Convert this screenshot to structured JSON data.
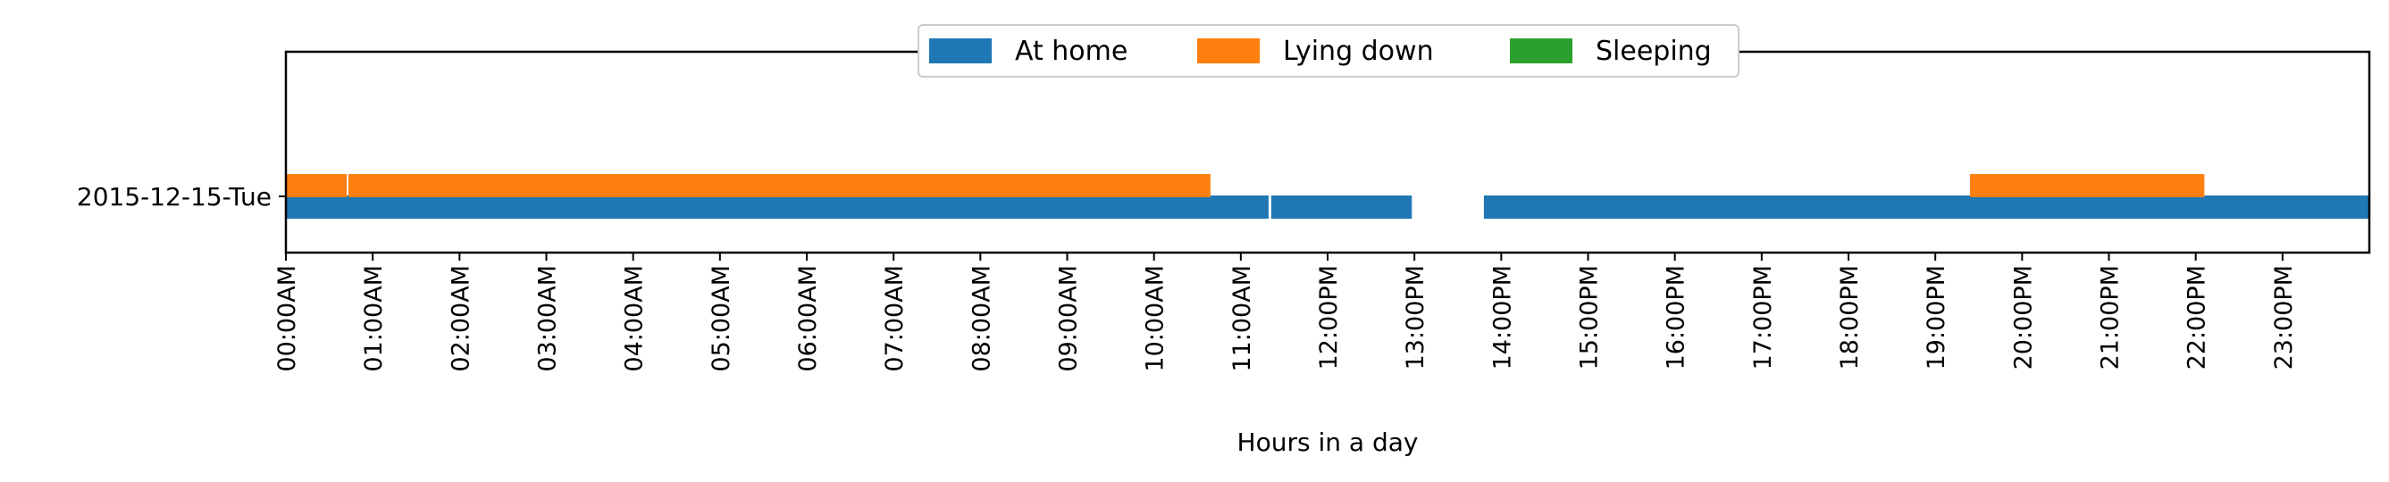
{
  "chart_data": {
    "type": "bar",
    "orientation": "horizontal-timeline",
    "xlabel": "Hours in a day",
    "xlim": [
      0,
      24
    ],
    "xticks": [
      {
        "value": 0,
        "label": "00:00AM"
      },
      {
        "value": 1,
        "label": "01:00AM"
      },
      {
        "value": 2,
        "label": "02:00AM"
      },
      {
        "value": 3,
        "label": "03:00AM"
      },
      {
        "value": 4,
        "label": "04:00AM"
      },
      {
        "value": 5,
        "label": "05:00AM"
      },
      {
        "value": 6,
        "label": "06:00AM"
      },
      {
        "value": 7,
        "label": "07:00AM"
      },
      {
        "value": 8,
        "label": "08:00AM"
      },
      {
        "value": 9,
        "label": "09:00AM"
      },
      {
        "value": 10,
        "label": "10:00AM"
      },
      {
        "value": 11,
        "label": "11:00AM"
      },
      {
        "value": 12,
        "label": "12:00PM"
      },
      {
        "value": 13,
        "label": "13:00PM"
      },
      {
        "value": 14,
        "label": "14:00PM"
      },
      {
        "value": 15,
        "label": "15:00PM"
      },
      {
        "value": 16,
        "label": "16:00PM"
      },
      {
        "value": 17,
        "label": "17:00PM"
      },
      {
        "value": 18,
        "label": "18:00PM"
      },
      {
        "value": 19,
        "label": "19:00PM"
      },
      {
        "value": 20,
        "label": "20:00PM"
      },
      {
        "value": 21,
        "label": "21:00PM"
      },
      {
        "value": 22,
        "label": "22:00PM"
      },
      {
        "value": 23,
        "label": "23:00PM"
      }
    ],
    "categories": [
      "2015-12-15-Tue"
    ],
    "legend": {
      "placement": "upper-center",
      "columns": 3
    },
    "grid": false,
    "series": [
      {
        "name": "At home",
        "color": "#1f77b4",
        "intervals": [
          [
            0.0,
            11.32
          ],
          [
            11.35,
            12.97
          ],
          [
            13.8,
            24.0
          ]
        ]
      },
      {
        "name": "Lying down",
        "color": "#ff7f0e",
        "intervals": [
          [
            0.0,
            0.7
          ],
          [
            0.72,
            10.65
          ],
          [
            19.4,
            22.1
          ]
        ]
      },
      {
        "name": "Sleeping",
        "color": "#2ca02c",
        "intervals": []
      }
    ]
  }
}
